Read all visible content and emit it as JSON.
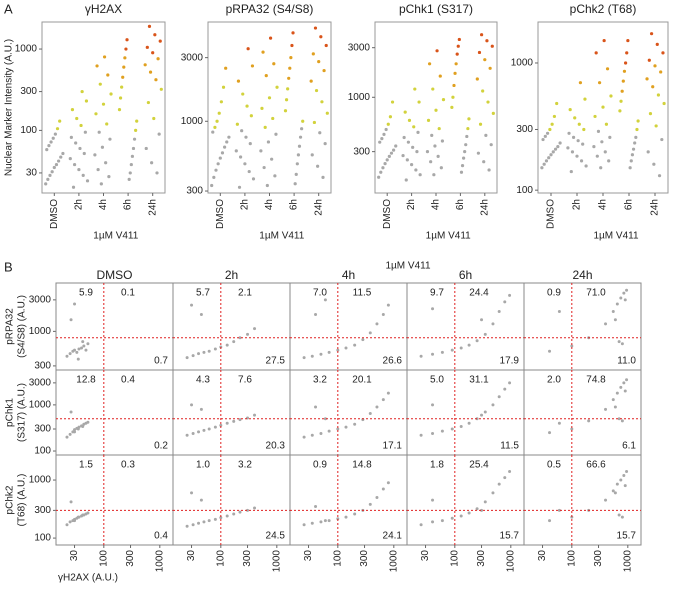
{
  "figure": {
    "panel_a_label": "A",
    "panel_b_label": "B"
  },
  "chart_data": [
    {
      "type": "strip",
      "title": "γH2AX",
      "ylabel": "Nuclear Marker Intensity (A.U.)",
      "xlabel": "1µM V411",
      "categories": [
        "DMSO",
        "2h",
        "4h",
        "6h",
        "24h"
      ],
      "log_y": true,
      "ylim": [
        17,
        2150
      ],
      "yticks": [
        30,
        100,
        300,
        1000
      ],
      "color_thresholds": [
        100,
        400,
        900
      ],
      "colors": [
        "#a8a8a8",
        "#d2d23c",
        "#e0a020",
        "#d9541a"
      ],
      "values": [
        [
          22,
          25,
          28,
          31,
          35,
          38,
          42,
          47,
          52,
          58,
          65,
          72,
          80,
          90,
          105,
          130
        ],
        [
          20,
          24,
          28,
          33,
          38,
          45,
          52,
          60,
          70,
          82,
          95,
          115,
          140,
          180,
          230,
          300
        ],
        [
          22,
          27,
          33,
          40,
          50,
          62,
          78,
          95,
          120,
          160,
          210,
          280,
          370,
          480,
          620,
          800
        ],
        [
          25,
          30,
          38,
          48,
          60,
          78,
          100,
          130,
          180,
          250,
          340,
          450,
          600,
          780,
          1000,
          1300
        ],
        [
          30,
          40,
          60,
          90,
          140,
          220,
          320,
          420,
          520,
          640,
          760,
          900,
          1050,
          1250,
          1500,
          1900
        ]
      ]
    },
    {
      "type": "strip",
      "title": "pRPA32 (S4/S8)",
      "xlabel": "1µM V411",
      "categories": [
        "DMSO",
        "2h",
        "4h",
        "6h",
        "24h"
      ],
      "log_y": true,
      "ylim": [
        290,
        5550
      ],
      "yticks": [
        300,
        1000,
        3000
      ],
      "color_thresholds": [
        900,
        2000,
        3500
      ],
      "colors": [
        "#a8a8a8",
        "#d2d23c",
        "#e0a020",
        "#d9541a"
      ],
      "values": [
        [
          330,
          380,
          430,
          480,
          530,
          580,
          640,
          700,
          760,
          830,
          900,
          1000,
          1150,
          1400,
          1800,
          2500
        ],
        [
          320,
          370,
          420,
          480,
          540,
          600,
          680,
          760,
          850,
          950,
          1100,
          1300,
          1600,
          2000,
          2600,
          3500
        ],
        [
          330,
          390,
          450,
          520,
          600,
          700,
          800,
          900,
          1050,
          1250,
          1500,
          1800,
          2200,
          2700,
          3300,
          4200
        ],
        [
          340,
          400,
          480,
          560,
          650,
          760,
          880,
          1000,
          1200,
          1450,
          1750,
          2100,
          2500,
          3000,
          3700,
          4600
        ],
        [
          380,
          460,
          560,
          680,
          820,
          980,
          1150,
          1400,
          1700,
          2000,
          2400,
          2800,
          3200,
          3700,
          4300,
          5000
        ]
      ]
    },
    {
      "type": "strip",
      "title": "pChk1 (S317)",
      "xlabel": "1µM V411",
      "categories": [
        "DMSO",
        "2h",
        "4h",
        "6h",
        "24h"
      ],
      "log_y": true,
      "ylim": [
        120,
        5300
      ],
      "yticks": [
        300,
        1000,
        3000
      ],
      "color_thresholds": [
        500,
        1300,
        2500
      ],
      "colors": [
        "#a8a8a8",
        "#d2d23c",
        "#e0a020",
        "#d9541a"
      ],
      "values": [
        [
          170,
          190,
          210,
          230,
          250,
          270,
          290,
          310,
          340,
          370,
          400,
          440,
          490,
          550,
          650,
          900
        ],
        [
          160,
          180,
          200,
          225,
          250,
          275,
          300,
          330,
          370,
          410,
          460,
          520,
          600,
          720,
          900,
          1200
        ],
        [
          180,
          210,
          240,
          270,
          300,
          340,
          380,
          430,
          500,
          600,
          750,
          950,
          1200,
          1600,
          2100,
          2800
        ],
        [
          190,
          220,
          260,
          300,
          350,
          420,
          500,
          620,
          800,
          1000,
          1300,
          1700,
          2100,
          2600,
          3100,
          3600
        ],
        [
          200,
          240,
          290,
          350,
          430,
          550,
          700,
          900,
          1150,
          1500,
          1900,
          2300,
          2700,
          3100,
          3500,
          4000
        ]
      ]
    },
    {
      "type": "strip",
      "title": "pChk2 (T68)",
      "xlabel": "1µM V411",
      "categories": [
        "DMSO",
        "2h",
        "4h",
        "6h",
        "24h"
      ],
      "log_y": true,
      "ylim": [
        95,
        2100
      ],
      "yticks": [
        100,
        300,
        1000
      ],
      "color_thresholds": [
        300,
        600,
        1000
      ],
      "colors": [
        "#a8a8a8",
        "#d2d23c",
        "#e0a020",
        "#d9541a"
      ],
      "values": [
        [
          150,
          160,
          170,
          180,
          190,
          200,
          210,
          220,
          235,
          250,
          265,
          280,
          300,
          330,
          380,
          480
        ],
        [
          140,
          155,
          170,
          185,
          200,
          215,
          230,
          245,
          260,
          280,
          300,
          330,
          370,
          430,
          520,
          700
        ],
        [
          150,
          170,
          185,
          200,
          220,
          240,
          260,
          290,
          330,
          380,
          450,
          550,
          700,
          900,
          1200,
          1500
        ],
        [
          150,
          170,
          190,
          210,
          235,
          260,
          300,
          350,
          420,
          500,
          600,
          720,
          860,
          1000,
          1200,
          1500
        ],
        [
          130,
          160,
          200,
          250,
          320,
          400,
          480,
          560,
          650,
          750,
          850,
          950,
          1050,
          1200,
          1400,
          1700
        ]
      ]
    },
    {
      "type": "scatter-grid",
      "group_label": "1µM V411",
      "xlabel": "γH2AX (A.U.)",
      "columns": [
        "DMSO",
        "2h",
        "4h",
        "6h",
        "24h"
      ],
      "log_x": true,
      "log_y": true,
      "xlim": [
        14,
        1720
      ],
      "xticks": [
        30,
        100,
        300,
        1000
      ],
      "x_threshold": 100,
      "point_color": "#a8a8a8",
      "threshold_color": "#e02020",
      "rows": [
        {
          "label": [
            "pRPA32",
            "(S4/S8) (A.U.)"
          ],
          "ylim": [
            260,
            5400
          ],
          "yticks": [
            300,
            1000,
            3000
          ],
          "y_threshold": 800
        },
        {
          "label": [
            "pChk1",
            "(S317) (A.U.)"
          ],
          "ylim": [
            82,
            5700
          ],
          "yticks": [
            100,
            300,
            1000,
            3000
          ],
          "y_threshold": 500
        },
        {
          "label": [
            "pChk2",
            "(T68) (A.U.)"
          ],
          "ylim": [
            76,
            2700
          ],
          "yticks": [
            100,
            300,
            1000
          ],
          "y_threshold": 300
        }
      ],
      "panels": [
        [
          {
            "x": [
              22,
              25,
              28,
              30,
              33,
              36,
              40,
              44,
              48,
              52,
              26,
              30,
              35,
              42
            ],
            "y": [
              420,
              460,
              500,
              520,
              480,
              540,
              560,
              600,
              520,
              650,
              1500,
              2600,
              380,
              700
            ],
            "quadrants": [
              "5.9",
              "0.1",
              "0.7"
            ]
          },
          {
            "x": [
              25,
              32,
              40,
              50,
              62,
              80,
              100,
              130,
              170,
              220,
              300,
              400,
              45,
              30
            ],
            "y": [
              400,
              430,
              460,
              480,
              500,
              540,
              580,
              620,
              700,
              800,
              900,
              1100,
              1800,
              2500
            ],
            "quadrants": [
              "5.7",
              "2.1",
              "27.5"
            ]
          },
          {
            "x": [
              25,
              35,
              50,
              70,
              100,
              140,
              200,
              280,
              380,
              500,
              650,
              800,
              40,
              60
            ],
            "y": [
              400,
              420,
              450,
              480,
              520,
              560,
              620,
              750,
              950,
              1300,
              1800,
              2500,
              1800,
              3000
            ],
            "quadrants": [
              "7.0",
              "11.5",
              "26.6"
            ]
          },
          {
            "x": [
              25,
              40,
              60,
              90,
              130,
              180,
              250,
              350,
              480,
              620,
              780,
              950,
              40,
              300
            ],
            "y": [
              420,
              450,
              480,
              520,
              560,
              620,
              720,
              900,
              1300,
              2000,
              2800,
              3500,
              2200,
              1500
            ],
            "quadrants": [
              "9.7",
              "24.4",
              "17.9"
            ]
          },
          {
            "x": [
              40,
              100,
              200,
              400,
              550,
              650,
              750,
              850,
              950,
              700,
              800,
              600,
              60,
              900
            ],
            "y": [
              500,
              600,
              800,
              1300,
              2000,
              2600,
              3200,
              3800,
              4200,
              700,
              650,
              1500,
              2000,
              3000
            ],
            "quadrants": [
              "0.9",
              "71.0",
              "11.0"
            ]
          }
        ],
        [
          {
            "x": [
              22,
              25,
              28,
              30,
              33,
              36,
              40,
              44,
              48,
              52,
              26,
              30,
              35,
              42
            ],
            "y": [
              200,
              230,
              260,
              290,
              310,
              330,
              350,
              380,
              400,
              420,
              700,
              260,
              300,
              340
            ],
            "quadrants": [
              "12.8",
              "0.4",
              "0.2"
            ]
          },
          {
            "x": [
              25,
              32,
              40,
              50,
              62,
              80,
              100,
              130,
              170,
              220,
              300,
              400,
              45,
              30
            ],
            "y": [
              220,
              240,
              260,
              280,
              300,
              330,
              360,
              400,
              440,
              480,
              520,
              600,
              800,
              1000
            ],
            "quadrants": [
              "4.3",
              "7.6",
              "20.3"
            ]
          },
          {
            "x": [
              25,
              35,
              50,
              70,
              100,
              140,
              200,
              280,
              380,
              500,
              650,
              800,
              40,
              60
            ],
            "y": [
              200,
              220,
              240,
              270,
              300,
              330,
              380,
              480,
              650,
              900,
              1300,
              1800,
              900,
              500
            ],
            "quadrants": [
              "3.2",
              "20.1",
              "17.1"
            ]
          },
          {
            "x": [
              25,
              40,
              60,
              90,
              130,
              180,
              250,
              350,
              480,
              620,
              780,
              950,
              40,
              300
            ],
            "y": [
              220,
              240,
              270,
              300,
              340,
              400,
              500,
              700,
              1000,
              1500,
              2200,
              3000,
              1000,
              600
            ],
            "quadrants": [
              "5.0",
              "31.1",
              "11.5"
            ]
          },
          {
            "x": [
              40,
              100,
              200,
              400,
              550,
              650,
              750,
              850,
              950,
              700,
              800,
              600,
              60,
              900
            ],
            "y": [
              250,
              300,
              450,
              800,
              1300,
              1800,
              2400,
              3000,
              3500,
              500,
              450,
              900,
              400,
              2000
            ],
            "quadrants": [
              "2.0",
              "74.8",
              "6.1"
            ]
          }
        ],
        [
          {
            "x": [
              22,
              25,
              28,
              30,
              33,
              36,
              40,
              44,
              48,
              52,
              26,
              30,
              35,
              42
            ],
            "y": [
              170,
              190,
              200,
              210,
              220,
              230,
              240,
              250,
              260,
              270,
              420,
              200,
              230,
              250
            ],
            "quadrants": [
              "1.5",
              "0.3",
              "0.4"
            ]
          },
          {
            "x": [
              25,
              32,
              40,
              50,
              62,
              80,
              100,
              130,
              170,
              220,
              300,
              400,
              45,
              30
            ],
            "y": [
              160,
              170,
              180,
              190,
              200,
              210,
              225,
              240,
              260,
              280,
              300,
              330,
              450,
              600
            ],
            "quadrants": [
              "1.0",
              "3.2",
              "24.5"
            ]
          },
          {
            "x": [
              25,
              35,
              50,
              70,
              100,
              140,
              200,
              280,
              380,
              500,
              650,
              800,
              40,
              60
            ],
            "y": [
              170,
              180,
              190,
              200,
              215,
              230,
              260,
              300,
              380,
              500,
              700,
              900,
              350,
              200
            ],
            "quadrants": [
              "0.9",
              "14.8",
              "24.1"
            ]
          },
          {
            "x": [
              25,
              40,
              60,
              90,
              130,
              180,
              250,
              350,
              480,
              620,
              780,
              950,
              40,
              300
            ],
            "y": [
              170,
              190,
              200,
              220,
              240,
              270,
              320,
              420,
              600,
              850,
              1100,
              1400,
              450,
              300
            ],
            "quadrants": [
              "1.8",
              "25.4",
              "15.7"
            ]
          },
          {
            "x": [
              40,
              100,
              200,
              400,
              550,
              650,
              750,
              850,
              950,
              700,
              800,
              600,
              60,
              900
            ],
            "y": [
              200,
              230,
              300,
              450,
              650,
              850,
              1000,
              1200,
              1400,
              250,
              230,
              600,
              300,
              800
            ],
            "quadrants": [
              "0.5",
              "66.6",
              "15.7"
            ]
          }
        ]
      ]
    }
  ]
}
